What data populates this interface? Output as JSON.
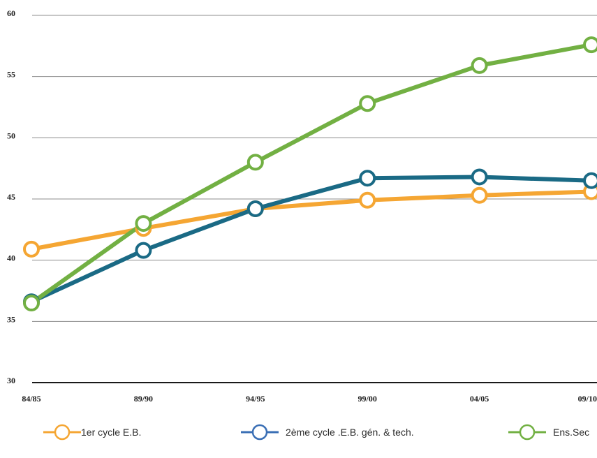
{
  "chart_data": {
    "type": "line",
    "categories": [
      "84/85",
      "89/90",
      "94/95",
      "99/00",
      "04/05",
      "09/10"
    ],
    "ylim": [
      30,
      60
    ],
    "yticks": [
      30,
      35,
      40,
      45,
      50,
      55,
      60
    ],
    "grid": true,
    "legend_position": "bottom",
    "series": [
      {
        "name": "1er cycle E.B.",
        "color": "#f5a633",
        "values": [
          40.9,
          42.6,
          44.2,
          44.9,
          45.3,
          45.6
        ]
      },
      {
        "name": "2ème cycle .E.B. gén. & tech.",
        "color": "#1a6a85",
        "legend_color": "#3a6fb5",
        "values": [
          36.6,
          40.8,
          44.2,
          46.7,
          46.8,
          46.5
        ]
      },
      {
        "name": "Ens.Sec",
        "color": "#72b043",
        "values": [
          36.5,
          43.0,
          48.0,
          52.8,
          55.9,
          57.6
        ]
      }
    ]
  }
}
